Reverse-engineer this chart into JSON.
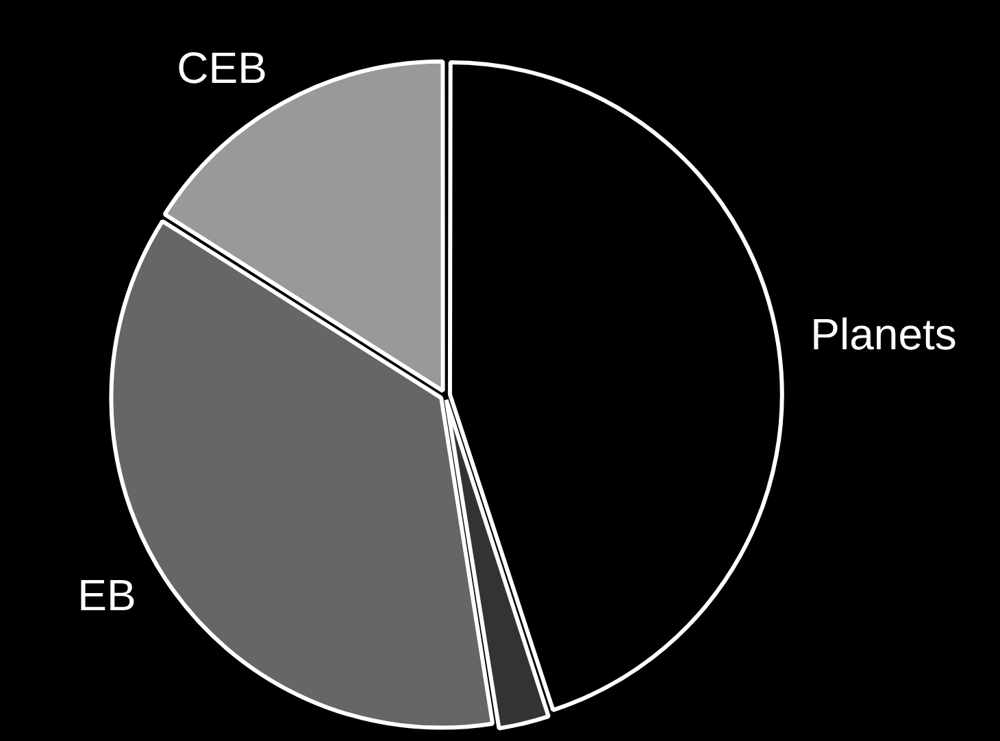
{
  "chart_data": {
    "type": "pie",
    "categories": [
      "Planets",
      null,
      "EB",
      "CEB"
    ],
    "values": [
      45,
      2.5,
      36.5,
      16
    ],
    "colors": [
      "#000000",
      "#333333",
      "#666666",
      "#999999"
    ],
    "legend": false
  }
}
